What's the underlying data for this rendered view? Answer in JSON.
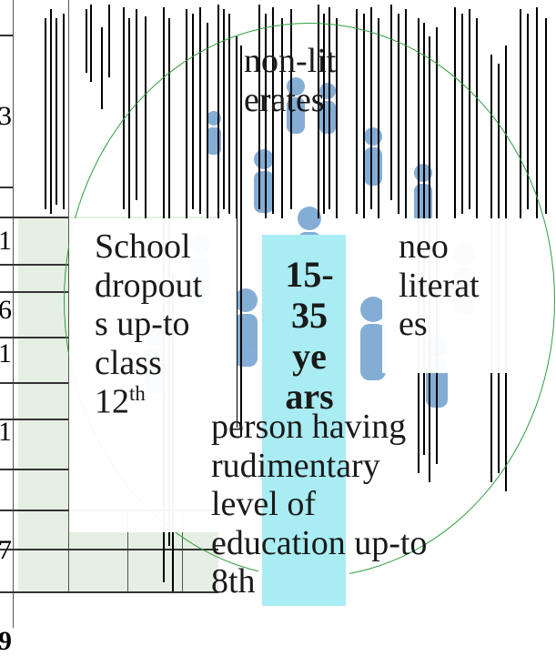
{
  "left_table": {
    "edge_numbers": [
      "3",
      "1",
      "6",
      "1",
      "1",
      "7",
      "9"
    ]
  },
  "diagram": {
    "center_label": "15-\n35\nye\nars",
    "top_label": "non-lit\nerates",
    "left_label": "School\ndropout\ns up-to\nclass\n12",
    "left_label_sup": "th",
    "right_label": "neo\nliterat\nes",
    "bottom_label": "person having\nrudimentary\nlevel of\neducation up-to\n8th"
  },
  "colors": {
    "circle_outline": "#2e9e3e",
    "center_panel": "#a9ecf3",
    "table_fill": "#e6efe3",
    "figure_blue": "#6f9fd0"
  },
  "icons": [
    "people-group-icon"
  ]
}
